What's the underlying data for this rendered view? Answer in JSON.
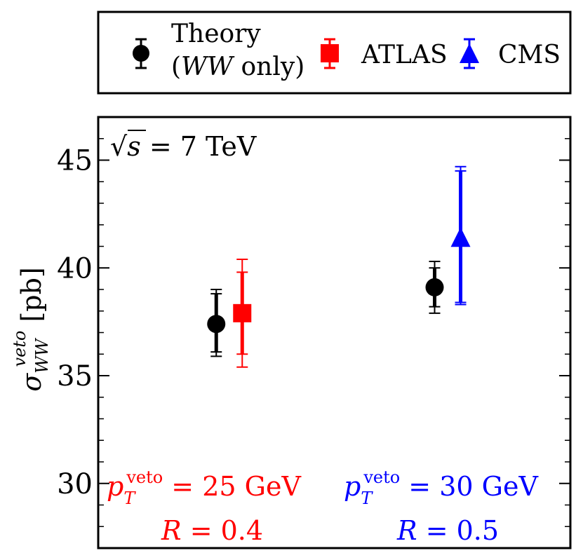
{
  "legend": {
    "theory_line1": "Theory",
    "theory_line2_a": "(",
    "theory_line2_b": "WW",
    "theory_line2_c": " only)",
    "atlas": "ATLAS",
    "cms": "CMS"
  },
  "chart_data": {
    "type": "scatter",
    "title": "",
    "xlabel": "",
    "ylabel": "σ_WW^veto [pb]",
    "ylabel_parts": {
      "sigma": "σ",
      "sub": "WW",
      "sup": "veto",
      "unit": " [pb]"
    },
    "ylim": [
      27,
      47
    ],
    "yticks": [
      30,
      35,
      40,
      45
    ],
    "ytick_labels": [
      "30",
      "35",
      "40",
      "45"
    ],
    "xlim": [
      0,
      4
    ],
    "series": [
      {
        "name": "Theory (WW only)",
        "color": "#000000",
        "marker": "circle",
        "points": [
          {
            "x": 1.0,
            "y": 37.4,
            "err_inner": [
              36.1,
              38.8
            ],
            "err_outer": [
              35.9,
              39.0
            ]
          },
          {
            "x": 2.85,
            "y": 39.1,
            "err_inner": [
              38.2,
              40.0
            ],
            "err_outer": [
              37.9,
              40.3
            ]
          }
        ]
      },
      {
        "name": "ATLAS",
        "color": "#ff0000",
        "marker": "square",
        "points": [
          {
            "x": 1.22,
            "y": 37.9,
            "err_inner": [
              36.0,
              39.8
            ],
            "err_outer": [
              35.4,
              40.4
            ]
          }
        ]
      },
      {
        "name": "CMS",
        "color": "#0000ff",
        "marker": "triangle",
        "points": [
          {
            "x": 3.07,
            "y": 41.4,
            "err_inner": [
              38.4,
              44.5
            ],
            "err_outer": [
              38.3,
              44.7
            ]
          }
        ]
      }
    ],
    "annotations": {
      "energy": {
        "sqrt": "√",
        "s": "s",
        "rest": " = 7 TeV"
      },
      "atlas_cut": {
        "p": "p",
        "sub": "T",
        "sup": "veto",
        "rest": " = 25 GeV",
        "r_label": "R",
        "r_rest": " = 0.4",
        "color": "#ff0000"
      },
      "cms_cut": {
        "p": "p",
        "sub": "T",
        "sup": "veto",
        "rest": " = 30 GeV",
        "r_label": "R",
        "r_rest": " = 0.5",
        "color": "#0000ff"
      }
    }
  }
}
